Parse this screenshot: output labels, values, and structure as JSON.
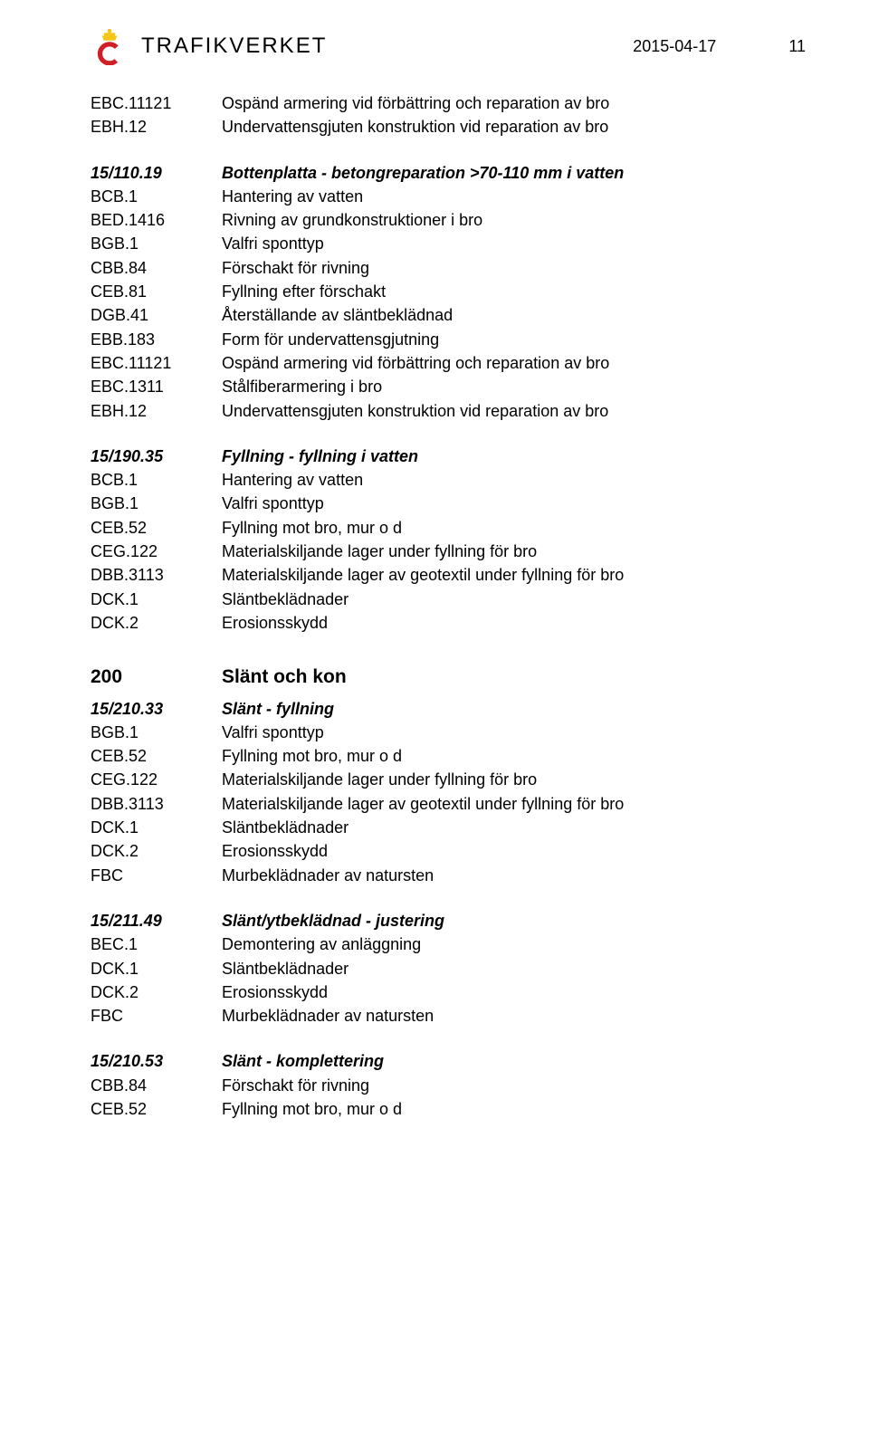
{
  "header": {
    "logo_text": "TRAFIKVERKET",
    "date": "2015-04-17",
    "page": "11",
    "logo_color": "#d01f27"
  },
  "blocks": [
    {
      "type": "row",
      "code": "EBC.11121",
      "desc": "Ospänd armering vid förbättring och reparation av bro"
    },
    {
      "type": "row",
      "code": "EBH.12",
      "desc": "Undervattensgjuten konstruktion vid reparation av bro"
    },
    {
      "type": "gap"
    },
    {
      "type": "row",
      "code": "15/110.19",
      "desc": "Bottenplatta - betongreparation >70-110 mm i vatten",
      "style": "bolditalic"
    },
    {
      "type": "row",
      "code": "BCB.1",
      "desc": "Hantering av vatten"
    },
    {
      "type": "row",
      "code": "BED.1416",
      "desc": "Rivning av grundkonstruktioner i bro"
    },
    {
      "type": "row",
      "code": "BGB.1",
      "desc": "Valfri sponttyp"
    },
    {
      "type": "row",
      "code": "CBB.84",
      "desc": "Förschakt för rivning"
    },
    {
      "type": "row",
      "code": "CEB.81",
      "desc": "Fyllning efter förschakt"
    },
    {
      "type": "row",
      "code": "DGB.41",
      "desc": "Återställande av släntbeklädnad"
    },
    {
      "type": "row",
      "code": "EBB.183",
      "desc": "Form för undervattensgjutning"
    },
    {
      "type": "row",
      "code": "EBC.11121",
      "desc": "Ospänd armering vid förbättring och reparation av bro"
    },
    {
      "type": "row",
      "code": "EBC.1311",
      "desc": "Stålfiberarmering i bro"
    },
    {
      "type": "row",
      "code": "EBH.12",
      "desc": "Undervattensgjuten konstruktion vid reparation av bro"
    },
    {
      "type": "gap"
    },
    {
      "type": "row",
      "code": "15/190.35",
      "desc": "Fyllning - fyllning i vatten",
      "style": "bolditalic"
    },
    {
      "type": "row",
      "code": "BCB.1",
      "desc": "Hantering av vatten"
    },
    {
      "type": "row",
      "code": "BGB.1",
      "desc": "Valfri sponttyp"
    },
    {
      "type": "row",
      "code": "CEB.52",
      "desc": "Fyllning mot bro, mur o d"
    },
    {
      "type": "row",
      "code": "CEG.122",
      "desc": "Materialskiljande lager under fyllning för bro"
    },
    {
      "type": "row",
      "code": "DBB.3113",
      "desc": "Materialskiljande lager av geotextil under fyllning för bro"
    },
    {
      "type": "row",
      "code": "DCK.1",
      "desc": "Släntbeklädnader"
    },
    {
      "type": "row",
      "code": "DCK.2",
      "desc": "Erosionsskydd"
    },
    {
      "type": "gap-lg"
    },
    {
      "type": "section",
      "code": "200",
      "desc": "Slänt och kon"
    },
    {
      "type": "row",
      "code": "15/210.33",
      "desc": "Slänt - fyllning",
      "style": "bolditalic"
    },
    {
      "type": "row",
      "code": "BGB.1",
      "desc": "Valfri sponttyp"
    },
    {
      "type": "row",
      "code": "CEB.52",
      "desc": "Fyllning mot bro, mur o d"
    },
    {
      "type": "row",
      "code": "CEG.122",
      "desc": "Materialskiljande lager under fyllning för bro"
    },
    {
      "type": "row",
      "code": "DBB.3113",
      "desc": "Materialskiljande lager av geotextil under fyllning för bro"
    },
    {
      "type": "row",
      "code": "DCK.1",
      "desc": "Släntbeklädnader"
    },
    {
      "type": "row",
      "code": "DCK.2",
      "desc": "Erosionsskydd"
    },
    {
      "type": "row",
      "code": "FBC",
      "desc": "Murbeklädnader av natursten"
    },
    {
      "type": "gap"
    },
    {
      "type": "row",
      "code": "15/211.49",
      "desc": "Slänt/ytbeklädnad - justering",
      "style": "bolditalic"
    },
    {
      "type": "row",
      "code": "BEC.1",
      "desc": "Demontering av anläggning"
    },
    {
      "type": "row",
      "code": "DCK.1",
      "desc": "Släntbeklädnader"
    },
    {
      "type": "row",
      "code": "DCK.2",
      "desc": "Erosionsskydd"
    },
    {
      "type": "row",
      "code": "FBC",
      "desc": "Murbeklädnader av natursten"
    },
    {
      "type": "gap"
    },
    {
      "type": "row",
      "code": "15/210.53",
      "desc": "Slänt - komplettering",
      "style": "bolditalic"
    },
    {
      "type": "row",
      "code": "CBB.84",
      "desc": "Förschakt för rivning"
    },
    {
      "type": "row",
      "code": "CEB.52",
      "desc": "Fyllning mot bro, mur o d"
    }
  ]
}
